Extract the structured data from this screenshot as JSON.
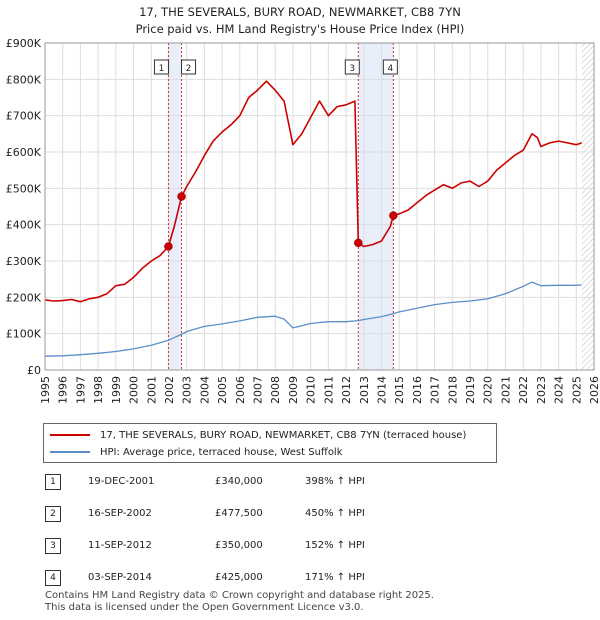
{
  "title_line1": "17, THE SEVERALS, BURY ROAD, NEWMARKET, CB8 7YN",
  "title_line2": "Price paid vs. HM Land Registry's House Price Index (HPI)",
  "colors": {
    "price": "#cc0000",
    "hpi": "#5b8fc9",
    "shade": "#e8eefa",
    "marker": "#cc0000",
    "grid": "#dddddd"
  },
  "chart_data": {
    "type": "line",
    "title": "17, THE SEVERALS, BURY ROAD, NEWMARKET, CB8 7YN — Price paid vs. HM Land Registry's House Price Index (HPI)",
    "xlim": [
      1995,
      2026
    ],
    "ylim": [
      0,
      900000
    ],
    "x_ticks": [
      "1995",
      "1996",
      "1997",
      "1998",
      "1999",
      "2000",
      "2001",
      "2002",
      "2003",
      "2004",
      "2005",
      "2006",
      "2007",
      "2008",
      "2009",
      "2010",
      "2011",
      "2012",
      "2013",
      "2014",
      "2015",
      "2016",
      "2017",
      "2018",
      "2019",
      "2020",
      "2021",
      "2022",
      "2023",
      "2024",
      "2025",
      "2026"
    ],
    "y_ticks": [
      {
        "value": 0,
        "label": "£0"
      },
      {
        "value": 100000,
        "label": "£100K"
      },
      {
        "value": 200000,
        "label": "£200K"
      },
      {
        "value": 300000,
        "label": "£300K"
      },
      {
        "value": 400000,
        "label": "£400K"
      },
      {
        "value": 500000,
        "label": "£500K"
      },
      {
        "value": 600000,
        "label": "£600K"
      },
      {
        "value": 700000,
        "label": "£700K"
      },
      {
        "value": 800000,
        "label": "£800K"
      },
      {
        "value": 900000,
        "label": "£900K"
      }
    ],
    "series": [
      {
        "name": "17, THE SEVERALS, BURY ROAD, NEWMARKET, CB8 7YN (terraced house)",
        "color": "#cc0000",
        "points": [
          [
            1995.0,
            193000
          ],
          [
            1995.5,
            190000
          ],
          [
            1996.0,
            191000
          ],
          [
            1996.5,
            194000
          ],
          [
            1997.0,
            188000
          ],
          [
            1997.5,
            196000
          ],
          [
            1998.0,
            200000
          ],
          [
            1998.5,
            210000
          ],
          [
            1999.0,
            232000
          ],
          [
            1999.5,
            236000
          ],
          [
            2000.0,
            255000
          ],
          [
            2000.5,
            280000
          ],
          [
            2001.0,
            300000
          ],
          [
            2001.5,
            315000
          ],
          [
            2001.97,
            340000
          ],
          [
            2002.3,
            395000
          ],
          [
            2002.71,
            477500
          ],
          [
            2003.0,
            505000
          ],
          [
            2003.5,
            545000
          ],
          [
            2004.0,
            590000
          ],
          [
            2004.5,
            630000
          ],
          [
            2005.0,
            655000
          ],
          [
            2005.5,
            675000
          ],
          [
            2006.0,
            700000
          ],
          [
            2006.5,
            750000
          ],
          [
            2007.0,
            770000
          ],
          [
            2007.5,
            795000
          ],
          [
            2008.0,
            770000
          ],
          [
            2008.5,
            740000
          ],
          [
            2009.0,
            620000
          ],
          [
            2009.5,
            650000
          ],
          [
            2010.0,
            695000
          ],
          [
            2010.5,
            740000
          ],
          [
            2011.0,
            700000
          ],
          [
            2011.5,
            725000
          ],
          [
            2012.0,
            730000
          ],
          [
            2012.5,
            740000
          ],
          [
            2012.69,
            350000
          ],
          [
            2013.0,
            340000
          ],
          [
            2013.5,
            345000
          ],
          [
            2014.0,
            355000
          ],
          [
            2014.5,
            395000
          ],
          [
            2014.67,
            425000
          ],
          [
            2015.0,
            430000
          ],
          [
            2015.5,
            440000
          ],
          [
            2016.0,
            460000
          ],
          [
            2016.5,
            480000
          ],
          [
            2017.0,
            495000
          ],
          [
            2017.5,
            510000
          ],
          [
            2018.0,
            500000
          ],
          [
            2018.5,
            515000
          ],
          [
            2019.0,
            520000
          ],
          [
            2019.5,
            505000
          ],
          [
            2020.0,
            520000
          ],
          [
            2020.5,
            550000
          ],
          [
            2021.0,
            570000
          ],
          [
            2021.5,
            590000
          ],
          [
            2022.0,
            605000
          ],
          [
            2022.5,
            650000
          ],
          [
            2022.8,
            640000
          ],
          [
            2023.0,
            615000
          ],
          [
            2023.5,
            625000
          ],
          [
            2024.0,
            630000
          ],
          [
            2024.5,
            625000
          ],
          [
            2025.0,
            620000
          ],
          [
            2025.3,
            625000
          ]
        ]
      },
      {
        "name": "HPI: Average price, terraced house, West Suffolk",
        "color": "#5b8fc9",
        "points": [
          [
            1995.0,
            38000
          ],
          [
            1996.0,
            39000
          ],
          [
            1997.0,
            42000
          ],
          [
            1998.0,
            46000
          ],
          [
            1999.0,
            51000
          ],
          [
            2000.0,
            58000
          ],
          [
            2001.0,
            68000
          ],
          [
            2001.97,
            82000
          ],
          [
            2002.71,
            98000
          ],
          [
            2003.0,
            106000
          ],
          [
            2004.0,
            120000
          ],
          [
            2005.0,
            127000
          ],
          [
            2006.0,
            135000
          ],
          [
            2007.0,
            145000
          ],
          [
            2008.0,
            148000
          ],
          [
            2008.5,
            140000
          ],
          [
            2009.0,
            116000
          ],
          [
            2009.5,
            122000
          ],
          [
            2010.0,
            128000
          ],
          [
            2011.0,
            133000
          ],
          [
            2012.0,
            133000
          ],
          [
            2012.69,
            136000
          ],
          [
            2013.0,
            139000
          ],
          [
            2014.0,
            147000
          ],
          [
            2014.67,
            155000
          ],
          [
            2015.0,
            160000
          ],
          [
            2016.0,
            170000
          ],
          [
            2017.0,
            180000
          ],
          [
            2018.0,
            186000
          ],
          [
            2019.0,
            190000
          ],
          [
            2020.0,
            196000
          ],
          [
            2021.0,
            210000
          ],
          [
            2022.0,
            230000
          ],
          [
            2022.5,
            242000
          ],
          [
            2023.0,
            232000
          ],
          [
            2024.0,
            233000
          ],
          [
            2025.0,
            233000
          ],
          [
            2025.3,
            234000
          ]
        ]
      }
    ],
    "transactions": [
      {
        "num": "1",
        "date": "19-DEC-2001",
        "price": "£340,000",
        "hpi": "398% ↑ HPI",
        "x": 2001.97,
        "y": 340000
      },
      {
        "num": "2",
        "date": "16-SEP-2002",
        "price": "£477,500",
        "hpi": "450% ↑ HPI",
        "x": 2002.71,
        "y": 477500
      },
      {
        "num": "3",
        "date": "11-SEP-2012",
        "price": "£350,000",
        "hpi": "152% ↑ HPI",
        "x": 2012.69,
        "y": 350000
      },
      {
        "num": "4",
        "date": "03-SEP-2014",
        "price": "£425,000",
        "hpi": "171% ↑ HPI",
        "x": 2014.67,
        "y": 425000
      }
    ],
    "shaded_periods": [
      [
        2001.97,
        2002.71
      ],
      [
        2012.69,
        2014.67
      ]
    ],
    "future_hatch_from": 2025.3
  },
  "legend": {
    "price_label": "17, THE SEVERALS, BURY ROAD, NEWMARKET, CB8 7YN (terraced house)",
    "hpi_label": "HPI: Average price, terraced house, West Suffolk"
  },
  "footer": {
    "line1": "Contains HM Land Registry data © Crown copyright and database right 2025.",
    "line2": "This data is licensed under the Open Government Licence v3.0."
  }
}
